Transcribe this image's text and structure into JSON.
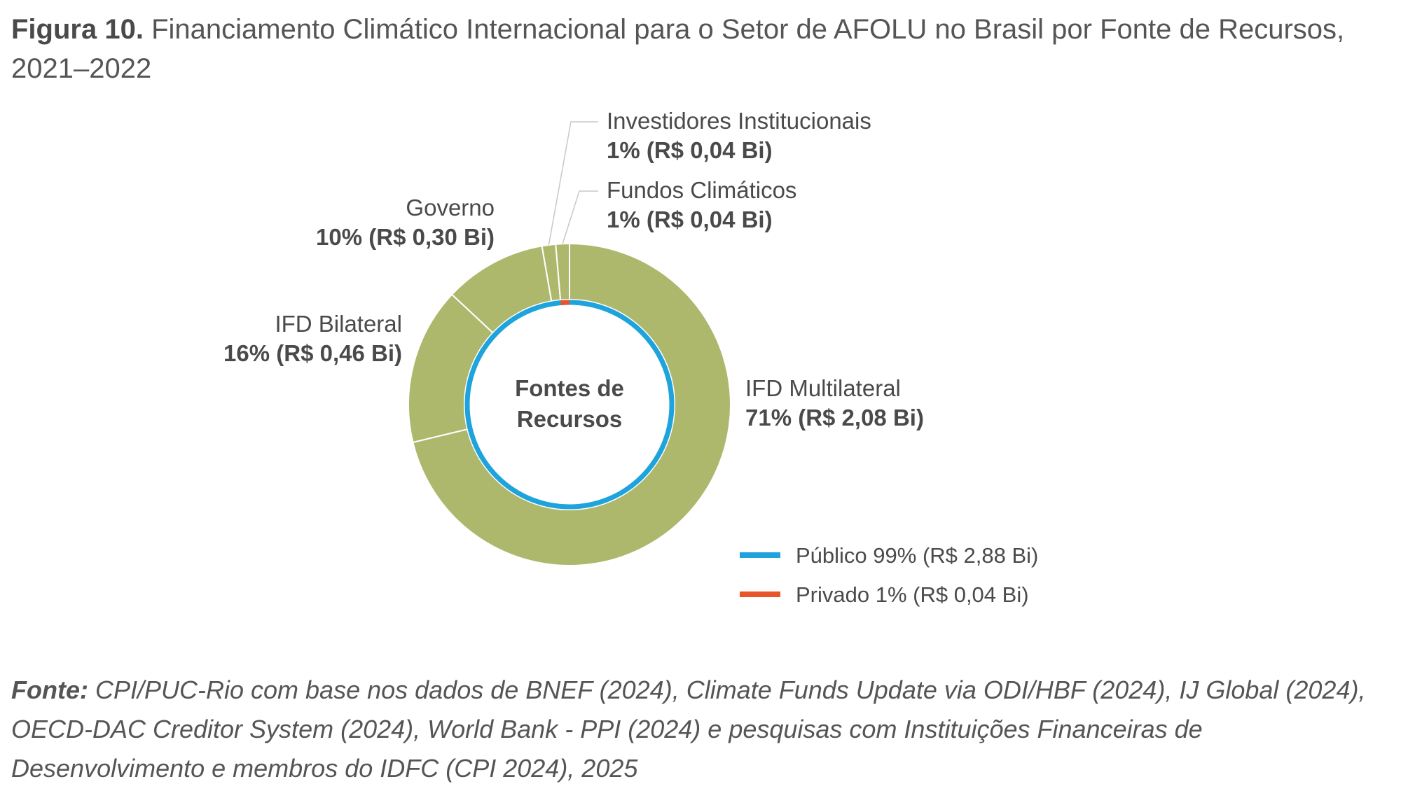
{
  "figure": {
    "label": "Figura 10.",
    "title": "Financiamento Climático Internacional para o Setor de AFOLU no Brasil por Fonte de Recursos, 2021–2022"
  },
  "chart_data": {
    "type": "pie",
    "center_label": [
      "Fontes de",
      "Recursos"
    ],
    "outer_ring": [
      {
        "name": "IFD Multilateral",
        "value_label": "71% (R$ 2,08 Bi)",
        "percent": 71,
        "value": 2.08,
        "color": "#adb86d"
      },
      {
        "name": "IFD Bilateral",
        "value_label": "16% (R$ 0,46 Bi)",
        "percent": 16,
        "value": 0.46,
        "color": "#adb86d"
      },
      {
        "name": "Governo",
        "value_label": "10% (R$ 0,30 Bi)",
        "percent": 10,
        "value": 0.3,
        "color": "#adb86d"
      },
      {
        "name": "Investidores Institucionais",
        "value_label": "1% (R$ 0,04 Bi)",
        "percent": 1,
        "value": 0.04,
        "color": "#adb86d"
      },
      {
        "name": "Fundos Climáticos",
        "value_label": "1% (R$ 0,04 Bi)",
        "percent": 1,
        "value": 0.04,
        "color": "#adb86d"
      }
    ],
    "inner_ring": [
      {
        "name": "Público",
        "label": "Público 99% (R$ 2,88 Bi)",
        "percent": 99,
        "value": 2.88,
        "color": "#1fa3dc"
      },
      {
        "name": "Privado",
        "label": "Privado 1% (R$ 0,04 Bi)",
        "percent": 1,
        "value": 0.04,
        "color": "#e8552b"
      }
    ],
    "legend_position": "bottom-right",
    "colors": {
      "outer": "#adb86d",
      "leader_line": "#c8c8c8",
      "text": "#4a4a4a"
    }
  },
  "source": {
    "label": "Fonte:",
    "text": "CPI/PUC-Rio com base nos dados de BNEF (2024), Climate Funds Update via ODI/HBF (2024), IJ Global (2024), OECD-DAC Creditor System (2024), World Bank - PPI (2024) e pesquisas com Instituições Financeiras de Desenvolvimento e membros do IDFC (CPI 2024), 2025"
  }
}
